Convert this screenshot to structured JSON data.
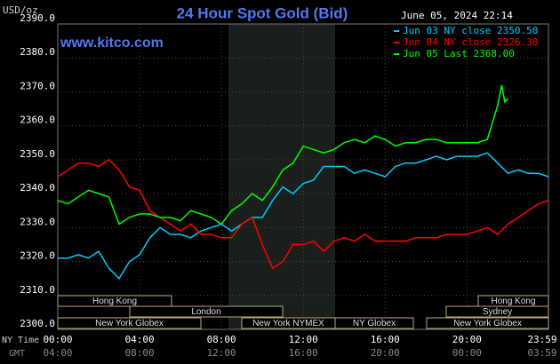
{
  "chart_data": {
    "type": "line",
    "title": "24 Hour Spot Gold (Bid)",
    "unit_label": "USD/oz",
    "site": "www.kitco.com",
    "timestamp": "June 05, 2024 22:14",
    "x_axis_label": "NY Time",
    "x2_axis_label": "GMT",
    "xlim": [
      0,
      23.983
    ],
    "ylim": [
      2300,
      2390
    ],
    "yticks": [
      {
        "value": 2300,
        "label": "2300.0"
      },
      {
        "value": 2310,
        "label": "2310.0"
      },
      {
        "value": 2320,
        "label": "2320.0"
      },
      {
        "value": 2330,
        "label": "2330.0"
      },
      {
        "value": 2340,
        "label": "2340.0"
      },
      {
        "value": 2350,
        "label": "2350.0"
      },
      {
        "value": 2360,
        "label": "2360.0"
      },
      {
        "value": 2370,
        "label": "2370.0"
      },
      {
        "value": 2380,
        "label": "2380.0"
      },
      {
        "value": 2390,
        "label": "2390.0"
      }
    ],
    "xticks": [
      {
        "value": 0,
        "label": "00:00"
      },
      {
        "value": 4,
        "label": "04:00"
      },
      {
        "value": 8,
        "label": "08:00"
      },
      {
        "value": 12,
        "label": "12:00"
      },
      {
        "value": 16,
        "label": "16:00"
      },
      {
        "value": 20,
        "label": "20:00"
      },
      {
        "value": 23.983,
        "label": "23:59"
      }
    ],
    "gmt_labels": [
      "04:00",
      "08:00",
      "12:00",
      "16:00",
      "20:00",
      "00:00",
      "03:59"
    ],
    "grid": true,
    "sessions": [
      "Hong Kong",
      "London",
      "New York Globex",
      "New York NYMEX",
      "NY Globex",
      "Hong Kong",
      "Sydney",
      "New York Globex"
    ],
    "series": [
      {
        "name": "Jun 03 NY close 2350.50",
        "color": "#00ccff",
        "x": [
          0,
          0.5,
          1,
          1.5,
          2,
          2.5,
          3,
          3.5,
          4,
          4.5,
          5,
          5.5,
          6,
          6.5,
          7,
          7.5,
          8,
          8.5,
          9,
          9.5,
          10,
          10.5,
          11,
          11.5,
          12,
          12.5,
          13,
          13.5,
          14,
          14.5,
          15,
          15.5,
          16,
          16.5,
          17,
          17.5,
          18,
          18.5,
          19,
          19.5,
          20,
          20.5,
          21,
          21.5,
          22,
          22.5,
          23,
          23.5,
          23.98
        ],
        "values": [
          2321,
          2321,
          2322,
          2321,
          2323,
          2318,
          2315,
          2320,
          2322,
          2327,
          2330,
          2328,
          2328,
          2327,
          2329,
          2330,
          2331,
          2329,
          2331,
          2333,
          2333,
          2338,
          2342,
          2340,
          2343,
          2344,
          2348,
          2348,
          2348,
          2346,
          2347,
          2346,
          2345,
          2348,
          2349,
          2349,
          2350,
          2351,
          2350,
          2351,
          2351,
          2351,
          2352,
          2349,
          2346,
          2347,
          2346,
          2346,
          2345
        ]
      },
      {
        "name": "Jun 04 NY close 2326.30",
        "color": "#ff0000",
        "x": [
          0,
          0.5,
          1,
          1.5,
          2,
          2.5,
          3,
          3.5,
          4,
          4.5,
          5,
          5.5,
          6,
          6.5,
          7,
          7.5,
          8,
          8.5,
          9,
          9.5,
          10,
          10.5,
          11,
          11.5,
          12,
          12.5,
          13,
          13.5,
          14,
          14.5,
          15,
          15.5,
          16,
          16.5,
          17,
          17.5,
          18,
          18.5,
          19,
          19.5,
          20,
          20.5,
          21,
          21.5,
          22,
          22.5,
          23,
          23.5,
          23.98
        ],
        "values": [
          2345,
          2347,
          2349,
          2349,
          2348,
          2350,
          2347,
          2342,
          2341,
          2335,
          2333,
          2331,
          2329,
          2331,
          2328,
          2328,
          2327,
          2327,
          2331,
          2333,
          2325,
          2318,
          2320,
          2325,
          2325,
          2326,
          2323,
          2326,
          2327,
          2326,
          2328,
          2326,
          2326,
          2326,
          2326,
          2327,
          2327,
          2327,
          2328,
          2328,
          2328,
          2329,
          2330,
          2328,
          2331,
          2333,
          2335,
          2337,
          2338
        ]
      },
      {
        "name": "Jun 05 Last 2368.00",
        "color": "#00ff00",
        "x": [
          0,
          0.5,
          1,
          1.5,
          2,
          2.5,
          3,
          3.5,
          4,
          4.5,
          5,
          5.5,
          6,
          6.5,
          7,
          7.5,
          8,
          8.5,
          9,
          9.5,
          10,
          10.5,
          11,
          11.5,
          12,
          12.5,
          13,
          13.5,
          14,
          14.5,
          15,
          15.5,
          16,
          16.5,
          17,
          17.5,
          18,
          18.5,
          19,
          19.5,
          20,
          20.5,
          21,
          21.5,
          21.7,
          21.85,
          22
        ],
        "values": [
          2338,
          2337,
          2339,
          2341,
          2340,
          2339,
          2331,
          2333,
          2334,
          2334,
          2333,
          2333,
          2332,
          2335,
          2334,
          2333,
          2331,
          2335,
          2337,
          2340,
          2338,
          2342,
          2347,
          2349,
          2354,
          2353,
          2352,
          2353,
          2355,
          2356,
          2355,
          2357,
          2356,
          2354,
          2355,
          2355,
          2356,
          2356,
          2355,
          2355,
          2355,
          2355,
          2356,
          2366,
          2372,
          2367,
          2368
        ]
      }
    ]
  }
}
